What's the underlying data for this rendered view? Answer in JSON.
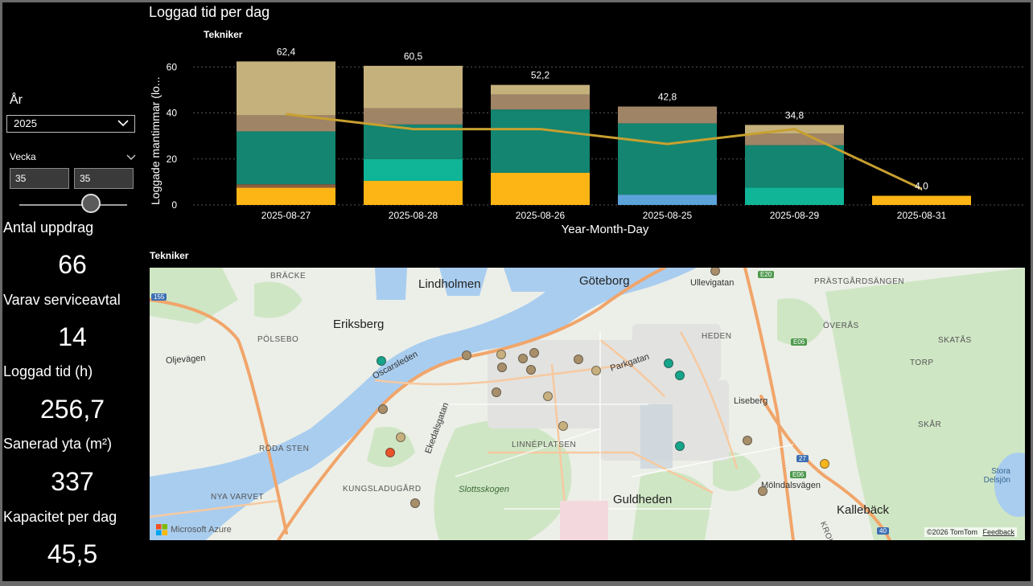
{
  "filters": {
    "year_label": "År",
    "year_value": "2025",
    "week_label": "Vecka",
    "week_from": "35",
    "week_to": "35"
  },
  "kpis": [
    {
      "label": "Antal uppdrag",
      "value": "66"
    },
    {
      "label": "Varav serviceavtal",
      "value": "14"
    },
    {
      "label": "Loggad tid (h)",
      "value": "256,7"
    },
    {
      "label": "Sanerad yta (m²)",
      "value": "337"
    },
    {
      "label": "Kapacitet per dag",
      "value": "45,5"
    }
  ],
  "chart": {
    "title": "Loggad tid per dag",
    "legend_title": "Tekniker",
    "xlabel": "Year-Month-Day",
    "ylabel": "Loggade mantimmar (lo...",
    "yticks": [
      "0",
      "20",
      "40",
      "60"
    ]
  },
  "chart_data": {
    "type": "bar",
    "stacked": true,
    "categories": [
      "2025-08-27",
      "2025-08-28",
      "2025-08-26",
      "2025-08-25",
      "2025-08-29",
      "2025-08-31"
    ],
    "totals": [
      62.4,
      60.5,
      52.2,
      42.8,
      34.8,
      4.0
    ],
    "total_labels": [
      "62,4",
      "60,5",
      "52,2",
      "42,8",
      "34,8",
      "4,0"
    ],
    "series": [
      {
        "color": "#FDB515",
        "values": [
          7.5,
          10.5,
          14,
          0,
          0,
          4.0
        ]
      },
      {
        "color": "#5BA3D9",
        "values": [
          0,
          0,
          0,
          4.5,
          0,
          0
        ]
      },
      {
        "color": "#8E5E3E",
        "values": [
          1.5,
          0,
          0,
          0,
          0,
          0
        ]
      },
      {
        "color": "#0FB596",
        "values": [
          0,
          9.5,
          0,
          0,
          7.5,
          0
        ]
      },
      {
        "color": "#138570",
        "values": [
          23,
          15,
          27.5,
          31,
          18.5,
          0
        ]
      },
      {
        "color": "#A08466",
        "values": [
          7,
          7,
          6.5,
          7.3,
          5,
          0
        ]
      },
      {
        "color": "#C5B17C",
        "values": [
          23.4,
          18.5,
          4.2,
          0,
          3.8,
          0
        ]
      }
    ],
    "line": {
      "color": "#C8A030",
      "values": [
        39.5,
        33,
        33,
        26.5,
        33,
        7
      ]
    },
    "ylim": [
      0,
      65
    ],
    "grid": true
  },
  "map": {
    "title": "Tekniker",
    "attribution_left": "Microsoft Azure",
    "attribution_right": "©2026 TomTom",
    "feedback": "Feedback",
    "labels": [
      {
        "text": "Lindholmen",
        "cls": "big"
      },
      {
        "text": "Göteborg",
        "cls": "big"
      },
      {
        "text": "Ullevigatan",
        "cls": "small"
      },
      {
        "text": "BRÄCKE",
        "cls": "caps"
      },
      {
        "text": "Eriksberg",
        "cls": "big"
      },
      {
        "text": "PÖLSEBO",
        "cls": "caps"
      },
      {
        "text": "Oljevägen",
        "cls": "small"
      },
      {
        "text": "Oscarsleden",
        "cls": "small"
      },
      {
        "text": "Parkgatan",
        "cls": "small"
      },
      {
        "text": "HEDEN",
        "cls": "caps"
      },
      {
        "text": "PRÄSTGÅRDSÄNGEN",
        "cls": "caps"
      },
      {
        "text": "ÖVERÅS",
        "cls": "caps"
      },
      {
        "text": "SKATÅS",
        "cls": "caps"
      },
      {
        "text": "TORP",
        "cls": "caps"
      },
      {
        "text": "Liseberg",
        "cls": "small"
      },
      {
        "text": "SKÅR",
        "cls": "caps"
      },
      {
        "text": "Ekedalsgatan",
        "cls": "small"
      },
      {
        "text": "LINNÉPLATSEN",
        "cls": "caps"
      },
      {
        "text": "RÖDA STEN",
        "cls": "caps"
      },
      {
        "text": "KUNGSLADUGÅRD",
        "cls": "caps"
      },
      {
        "text": "Slottsskogen",
        "cls": "park"
      },
      {
        "text": "NYA VARVET",
        "cls": "caps"
      },
      {
        "text": "Guldheden",
        "cls": "big"
      },
      {
        "text": "Mölndalsvägen",
        "cls": "small"
      },
      {
        "text": "Kallebäck",
        "cls": "big"
      },
      {
        "text": "KROKSLÄTT",
        "cls": "caps"
      },
      {
        "text": "Stora Delsjön",
        "cls": "water"
      },
      {
        "text": "E20",
        "cls": "shield"
      },
      {
        "text": "E06",
        "cls": "shield"
      },
      {
        "text": "E06",
        "cls": "shield"
      },
      {
        "text": "27",
        "cls": "shieldb"
      },
      {
        "text": "40",
        "cls": "shieldb"
      },
      {
        "text": "155",
        "cls": "shieldb"
      }
    ],
    "marker_colors": {
      "brown": "#A88F6A",
      "tan": "#C8B07E",
      "teal": "#14A58A",
      "red": "#E8532A",
      "yellow": "#F5B51C"
    }
  }
}
